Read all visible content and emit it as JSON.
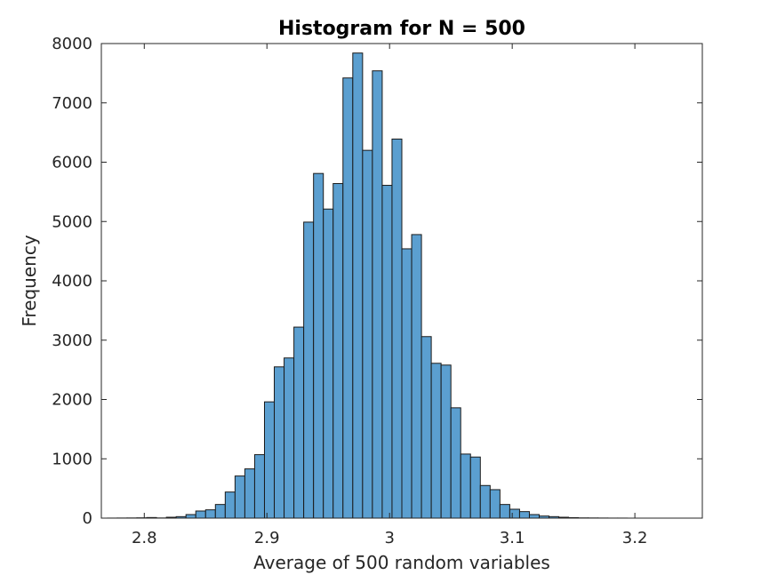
{
  "chart_data": {
    "type": "bar",
    "title": "Histogram for N = 500",
    "xlabel": "Average of 500 random variables",
    "ylabel": "Frequency",
    "xlim": [
      2.765,
      3.255
    ],
    "ylim": [
      0,
      8000
    ],
    "xticks": [
      2.8,
      2.9,
      3,
      3.1,
      3.2
    ],
    "xtick_labels": [
      "2.8",
      "2.9",
      "3",
      "3.1",
      "3.2"
    ],
    "yticks": [
      0,
      1000,
      2000,
      3000,
      4000,
      5000,
      6000,
      7000,
      8000
    ],
    "ytick_labels": [
      "0",
      "1000",
      "2000",
      "3000",
      "4000",
      "5000",
      "6000",
      "7000",
      "8000"
    ],
    "bin_width": 0.008,
    "bin_edges_start": 2.77,
    "values": [
      1,
      2,
      3,
      5,
      10,
      3,
      15,
      25,
      60,
      120,
      140,
      230,
      440,
      710,
      830,
      1070,
      1960,
      2550,
      2700,
      3220,
      4990,
      5810,
      5210,
      5640,
      7420,
      7840,
      6200,
      7540,
      5610,
      6390,
      4540,
      4780,
      3060,
      2610,
      2580,
      1860,
      1080,
      1030,
      550,
      480,
      230,
      150,
      110,
      60,
      35,
      25,
      15,
      8,
      4,
      3,
      2,
      1,
      1
    ],
    "bar_color": "#5b9fd0",
    "grid": false
  }
}
